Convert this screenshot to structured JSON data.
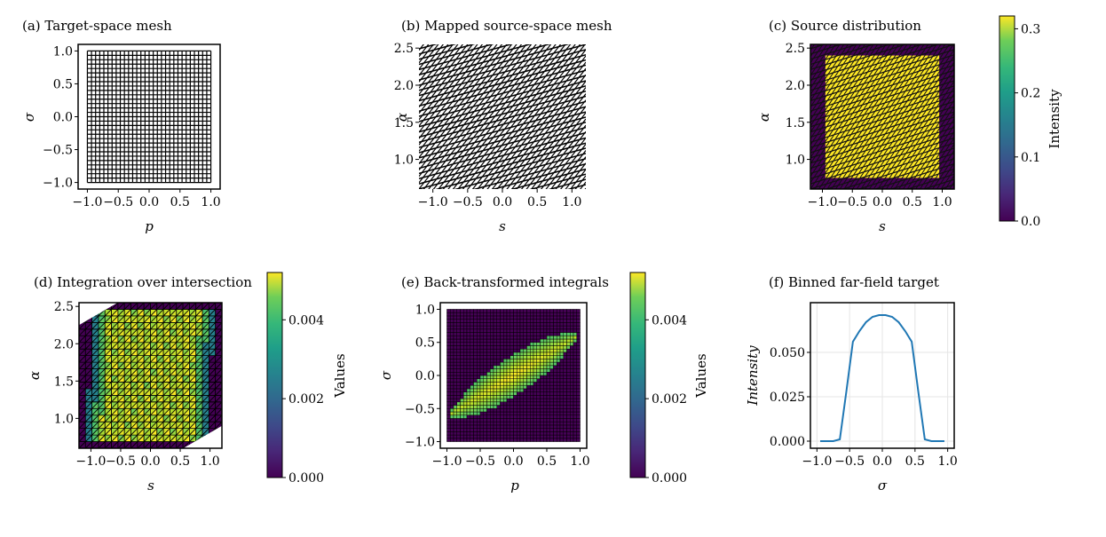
{
  "figure": {
    "panels": {
      "a": {
        "title": "(a) Target-space mesh",
        "xlabel": "p",
        "ylabel": "σ"
      },
      "b": {
        "title": "(b) Mapped source-space mesh",
        "xlabel": "s",
        "ylabel": "α"
      },
      "c": {
        "title": "(c) Source distribution",
        "xlabel": "s",
        "ylabel": "α"
      },
      "d": {
        "title": "(d) Integration over intersection",
        "xlabel": "s",
        "ylabel": "α"
      },
      "e": {
        "title": "(e) Back-transformed integrals",
        "xlabel": "p",
        "ylabel": "σ"
      },
      "f": {
        "title": "(f) Binned far-field target",
        "xlabel": "σ",
        "ylabel": "Intensity"
      }
    },
    "ticks": {
      "pm1": [
        "−1.0",
        "−0.5",
        "0.0",
        "0.5",
        "1.0"
      ],
      "alpha": [
        "1.0",
        "1.5",
        "2.0",
        "2.5"
      ],
      "cb_c": [
        "0.0",
        "0.1",
        "0.2",
        "0.3"
      ],
      "cb_d": [
        "0.000",
        "0.002",
        "0.004"
      ],
      "intensity": [
        "0.000",
        "0.025",
        "0.050"
      ]
    },
    "colorbars": {
      "c": {
        "label": "Intensity",
        "min": 0.0,
        "max": 0.32
      },
      "d": {
        "label": "Values",
        "min": 0.0,
        "max": 0.0052
      },
      "e": {
        "label": "Values",
        "min": 0.0,
        "max": 0.0052
      }
    },
    "colors": {
      "line": "#1f77b4",
      "viridis_low": "#440154",
      "viridis_high": "#fde725",
      "grid": "#e5e5e5"
    }
  },
  "chart_data": [
    {
      "id": "a",
      "type": "mesh",
      "title": "(a) Target-space mesh",
      "xlabel": "p",
      "ylabel": "σ",
      "xlim": [
        -1.15,
        1.15
      ],
      "ylim": [
        -1.1,
        1.1
      ],
      "mesh_range": [
        -1,
        1
      ],
      "cells": 30
    },
    {
      "id": "b",
      "type": "mesh",
      "title": "(b) Mapped source-space mesh",
      "xlabel": "s",
      "ylabel": "α",
      "xlim": [
        -1.2,
        1.2
      ],
      "ylim": [
        0.6,
        2.55
      ]
    },
    {
      "id": "c",
      "type": "heatmap",
      "title": "(c) Source distribution",
      "xlabel": "s",
      "ylabel": "α",
      "xlim": [
        -1.2,
        1.2
      ],
      "ylim": [
        0.6,
        2.55
      ],
      "inside_value": 0.32,
      "outside_value": 0.0,
      "support_s": [
        -0.95,
        0.95
      ],
      "support_alpha": [
        0.75,
        2.4
      ]
    },
    {
      "id": "d",
      "type": "heatmap",
      "title": "(d) Integration over intersection",
      "xlabel": "s",
      "ylabel": "α",
      "xlim": [
        -1.2,
        1.2
      ],
      "ylim": [
        0.6,
        2.55
      ],
      "max_value": 0.0052
    },
    {
      "id": "e",
      "type": "heatmap",
      "title": "(e) Back-transformed integrals",
      "xlabel": "p",
      "ylabel": "σ",
      "xlim": [
        -1.1,
        1.1
      ],
      "ylim": [
        -1.1,
        1.1
      ],
      "max_value": 0.0052
    },
    {
      "id": "f",
      "type": "line",
      "title": "(f) Binned far-field target",
      "xlabel": "σ",
      "ylabel": "Intensity",
      "xlim": [
        -1.1,
        1.1
      ],
      "ylim": [
        -0.004,
        0.078
      ],
      "x": [
        -0.95,
        -0.85,
        -0.75,
        -0.65,
        -0.55,
        -0.45,
        -0.35,
        -0.25,
        -0.15,
        -0.05,
        0.05,
        0.15,
        0.25,
        0.35,
        0.45,
        0.55,
        0.65,
        0.75,
        0.85,
        0.95
      ],
      "y": [
        0.0,
        0.0,
        0.0,
        0.001,
        0.028,
        0.056,
        0.062,
        0.067,
        0.07,
        0.071,
        0.071,
        0.07,
        0.067,
        0.062,
        0.056,
        0.028,
        0.001,
        0.0,
        0.0,
        0.0
      ]
    }
  ]
}
